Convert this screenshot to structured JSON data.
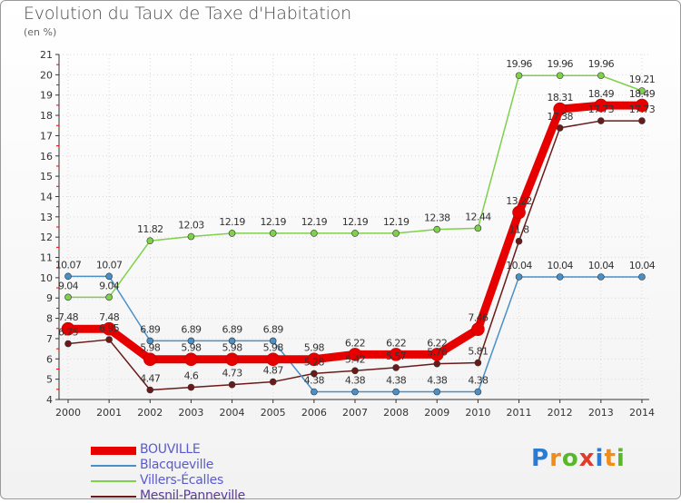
{
  "header": {
    "title": "Evolution du Taux de Taxe d'Habitation",
    "subtitle": "(en %)"
  },
  "logo": {
    "letters": [
      "P",
      "r",
      "o",
      "x",
      "i",
      "t",
      "i"
    ],
    "colors": [
      "#2a7bd6",
      "#f08c1a",
      "#58b82a",
      "#e23b2a",
      "#2a7bd6",
      "#f08c1a",
      "#58b82a"
    ]
  },
  "chart_data": {
    "type": "line",
    "title": "Evolution du Taux de Taxe d'Habitation",
    "ylabel": "(en %)",
    "xlabel": "",
    "ylim": [
      4,
      21
    ],
    "yticks": [
      4,
      5,
      6,
      7,
      8,
      9,
      10,
      11,
      12,
      13,
      14,
      15,
      16,
      17,
      18,
      19,
      20,
      21
    ],
    "x": [
      "2000",
      "2001",
      "2002",
      "2003",
      "2004",
      "2005",
      "2006",
      "2007",
      "2008",
      "2009",
      "2010",
      "2011",
      "2012",
      "2013",
      "2014"
    ],
    "legend_position": "bottom-left",
    "series": [
      {
        "name": "Mesnil-Panneville",
        "color": "#6b1a1a",
        "width": 1.5,
        "values": [
          6.75,
          6.95,
          4.47,
          4.6,
          4.73,
          4.87,
          5.28,
          5.42,
          5.57,
          5.76,
          5.81,
          11.8,
          17.38,
          17.73,
          17.73
        ],
        "labels": [
          "6.75",
          "6.95",
          "4.47",
          "4.6",
          "4.73",
          "4.87",
          "5.28",
          "5.42",
          "5.57",
          "5.76",
          "5.81",
          "11.8",
          "17.38",
          "17.73",
          "17.73"
        ]
      },
      {
        "name": "Blacqueville",
        "color": "#4a90c8",
        "width": 1.5,
        "values": [
          10.07,
          10.07,
          6.89,
          6.89,
          6.89,
          6.89,
          4.38,
          4.38,
          4.38,
          4.38,
          4.38,
          10.04,
          10.04,
          10.04,
          10.04
        ],
        "labels": [
          "10.07",
          "10.07",
          "6.89",
          "6.89",
          "6.89",
          "6.89",
          "4.38",
          "4.38",
          "4.38",
          "4.38",
          "4.38",
          "10.04",
          "10.04",
          "10.04",
          "10.04"
        ]
      },
      {
        "name": "Villers-Écalles",
        "color": "#7fd04a",
        "width": 1.5,
        "values": [
          9.04,
          9.04,
          11.82,
          12.03,
          12.19,
          12.19,
          12.19,
          12.19,
          12.19,
          12.38,
          12.44,
          19.96,
          19.96,
          19.96,
          19.21
        ],
        "labels": [
          "9.04",
          "9.04",
          "11.82",
          "12.03",
          "12.19",
          "12.19",
          "12.19",
          "12.19",
          "12.19",
          "12.38",
          "12.44",
          "19.96",
          "19.96",
          "19.96",
          "19.21"
        ]
      },
      {
        "name": "BOUVILLE",
        "color": "#e60000",
        "width": 9,
        "values": [
          7.48,
          7.48,
          5.98,
          5.98,
          5.98,
          5.98,
          5.98,
          6.22,
          6.22,
          6.22,
          7.46,
          13.22,
          18.31,
          18.49,
          18.49
        ],
        "labels": [
          "7.48",
          "7.48",
          "5.98",
          "5.98",
          "5.98",
          "5.98",
          "5.98",
          "6.22",
          "6.22",
          "6.22",
          "7.46",
          "13.22",
          "18.31",
          "18.49",
          "18.49"
        ]
      }
    ],
    "legend": [
      {
        "name": "BOUVILLE",
        "color": "#e60000"
      },
      {
        "name": "Blacqueville",
        "color": "#4a90c8"
      },
      {
        "name": "Villers-Écalles",
        "color": "#7fd04a"
      },
      {
        "name": "Mesnil-Panneville",
        "color": "#6b1a1a"
      }
    ]
  }
}
